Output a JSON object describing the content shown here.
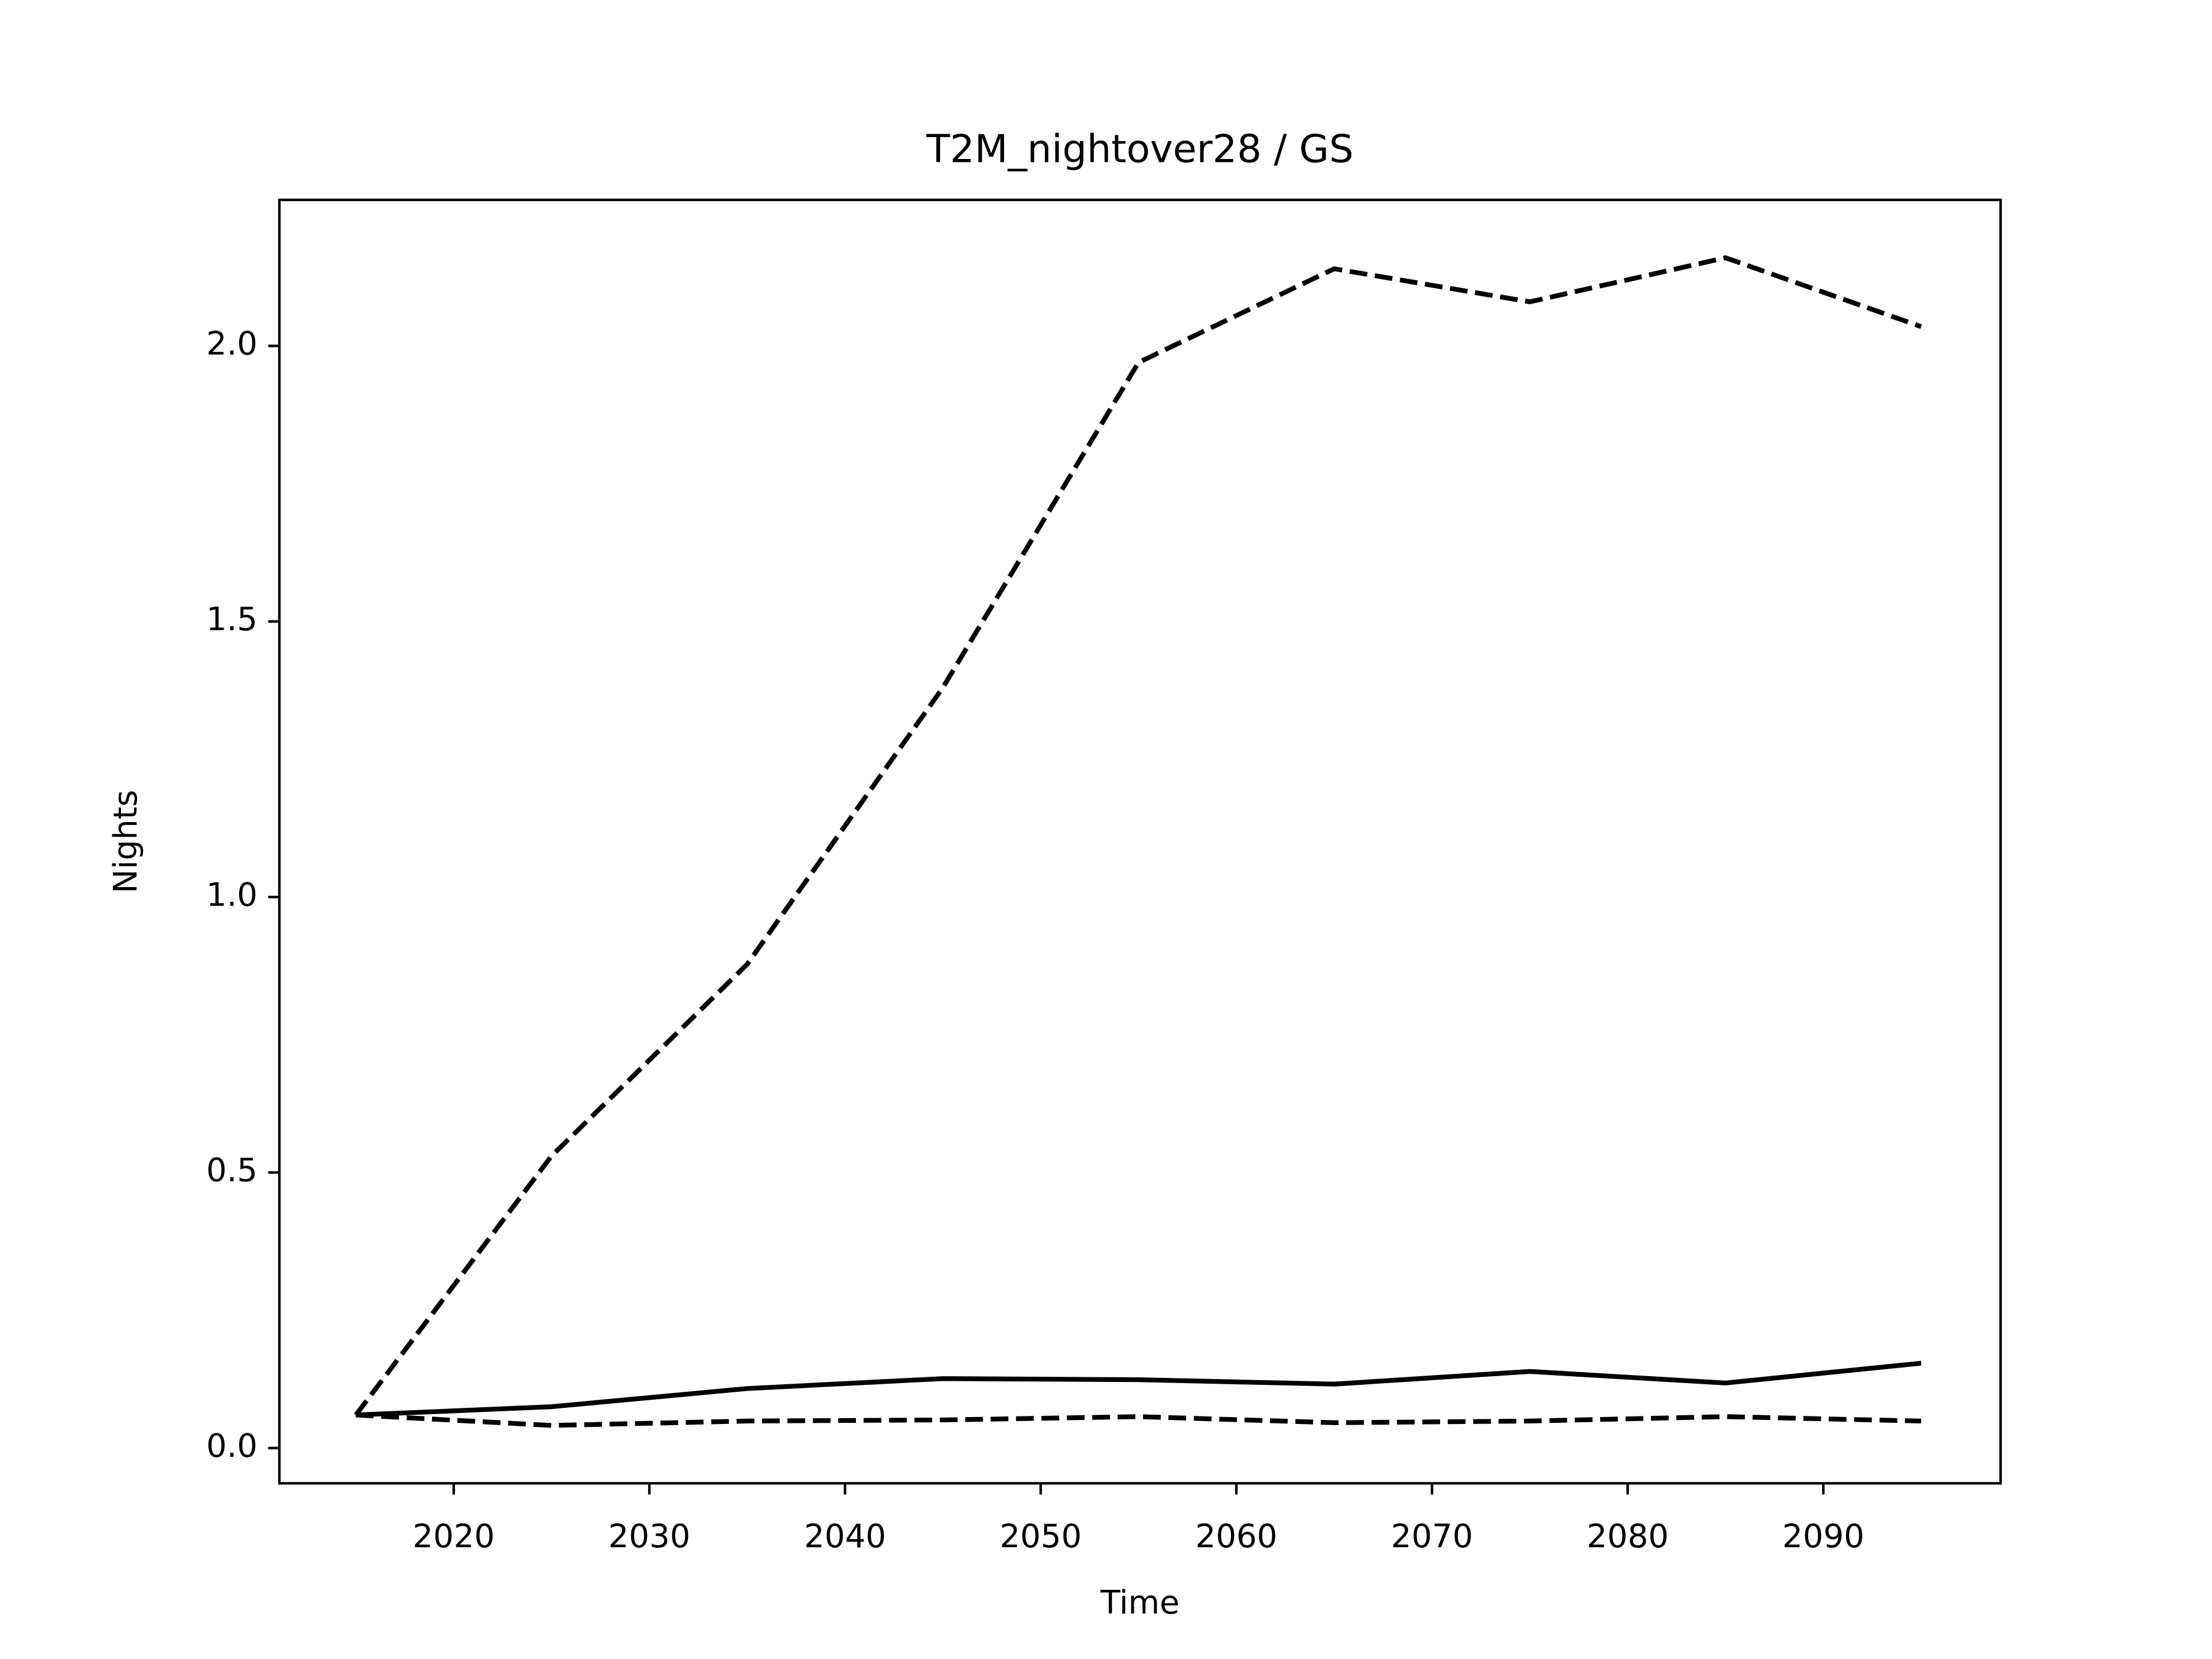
{
  "chart_data": {
    "type": "line",
    "title": "T2M_nightover28 / GS",
    "xlabel": "Time",
    "ylabel": "Nights",
    "x": [
      2015,
      2025,
      2035,
      2045,
      2055,
      2065,
      2075,
      2085,
      2095
    ],
    "series": [
      {
        "color": "#000000",
        "linestyle": "dashed",
        "values": [
          0.06,
          0.53,
          0.878,
          1.38,
          1.97,
          2.14,
          2.08,
          2.16,
          2.035
        ]
      },
      {
        "color": "#000000",
        "linestyle": "solid",
        "values": [
          0.06,
          0.075,
          0.108,
          0.126,
          0.124,
          0.116,
          0.139,
          0.118,
          0.154
        ]
      },
      {
        "color": "#000000",
        "linestyle": "dashed",
        "values": [
          0.06,
          0.041,
          0.049,
          0.051,
          0.057,
          0.046,
          0.049,
          0.057,
          0.049
        ]
      }
    ],
    "xlim": [
      2011.09,
      2099.06
    ],
    "xticks": [
      2020,
      2030,
      2040,
      2050,
      2060,
      2070,
      2080,
      2090
    ],
    "ylim": [
      -0.064,
      2.265
    ],
    "yticks": [
      {
        "value": 0,
        "label": "0.0"
      },
      0.5,
      {
        "value": 1,
        "label": "1.0"
      },
      1.5,
      {
        "value": 2,
        "label": "2.0"
      }
    ],
    "grid": false
  }
}
